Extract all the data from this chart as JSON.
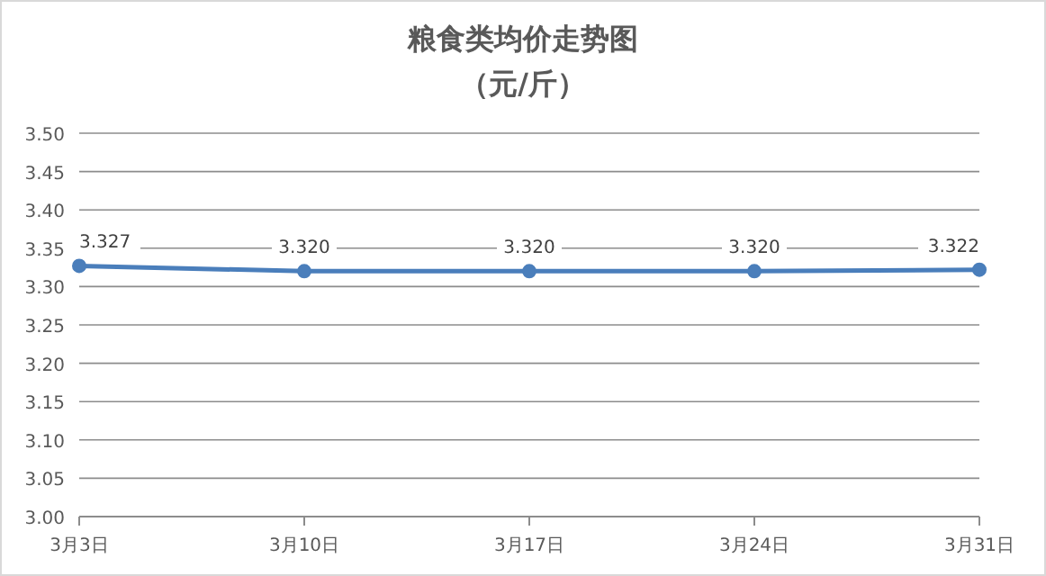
{
  "chart_data": {
    "type": "line",
    "title": "粮食类均价走势图",
    "subtitle": "（元/斤）",
    "categories": [
      "3月3日",
      "3月10日",
      "3月17日",
      "3月24日",
      "3月31日"
    ],
    "series": [
      {
        "color": "#4a7ebb",
        "values": [
          3.327,
          3.32,
          3.32,
          3.32,
          3.322
        ],
        "value_labels": [
          "3.327",
          "3.320",
          "3.320",
          "3.320",
          "3.322"
        ]
      }
    ],
    "ylim": [
      3.0,
      3.5
    ],
    "yticks": [
      {
        "value": 3.0,
        "label": "3.00"
      },
      {
        "value": 3.05,
        "label": "3.05"
      },
      {
        "value": 3.1,
        "label": "3.10"
      },
      {
        "value": 3.15,
        "label": "3.15"
      },
      {
        "value": 3.2,
        "label": "3.20"
      },
      {
        "value": 3.25,
        "label": "3.25"
      },
      {
        "value": 3.3,
        "label": "3.30"
      },
      {
        "value": 3.35,
        "label": "3.35"
      },
      {
        "value": 3.4,
        "label": "3.40"
      },
      {
        "value": 3.45,
        "label": "3.45"
      },
      {
        "value": 3.5,
        "label": "3.50"
      }
    ],
    "grid": "y",
    "marker": "circle",
    "line_style": "solid"
  }
}
